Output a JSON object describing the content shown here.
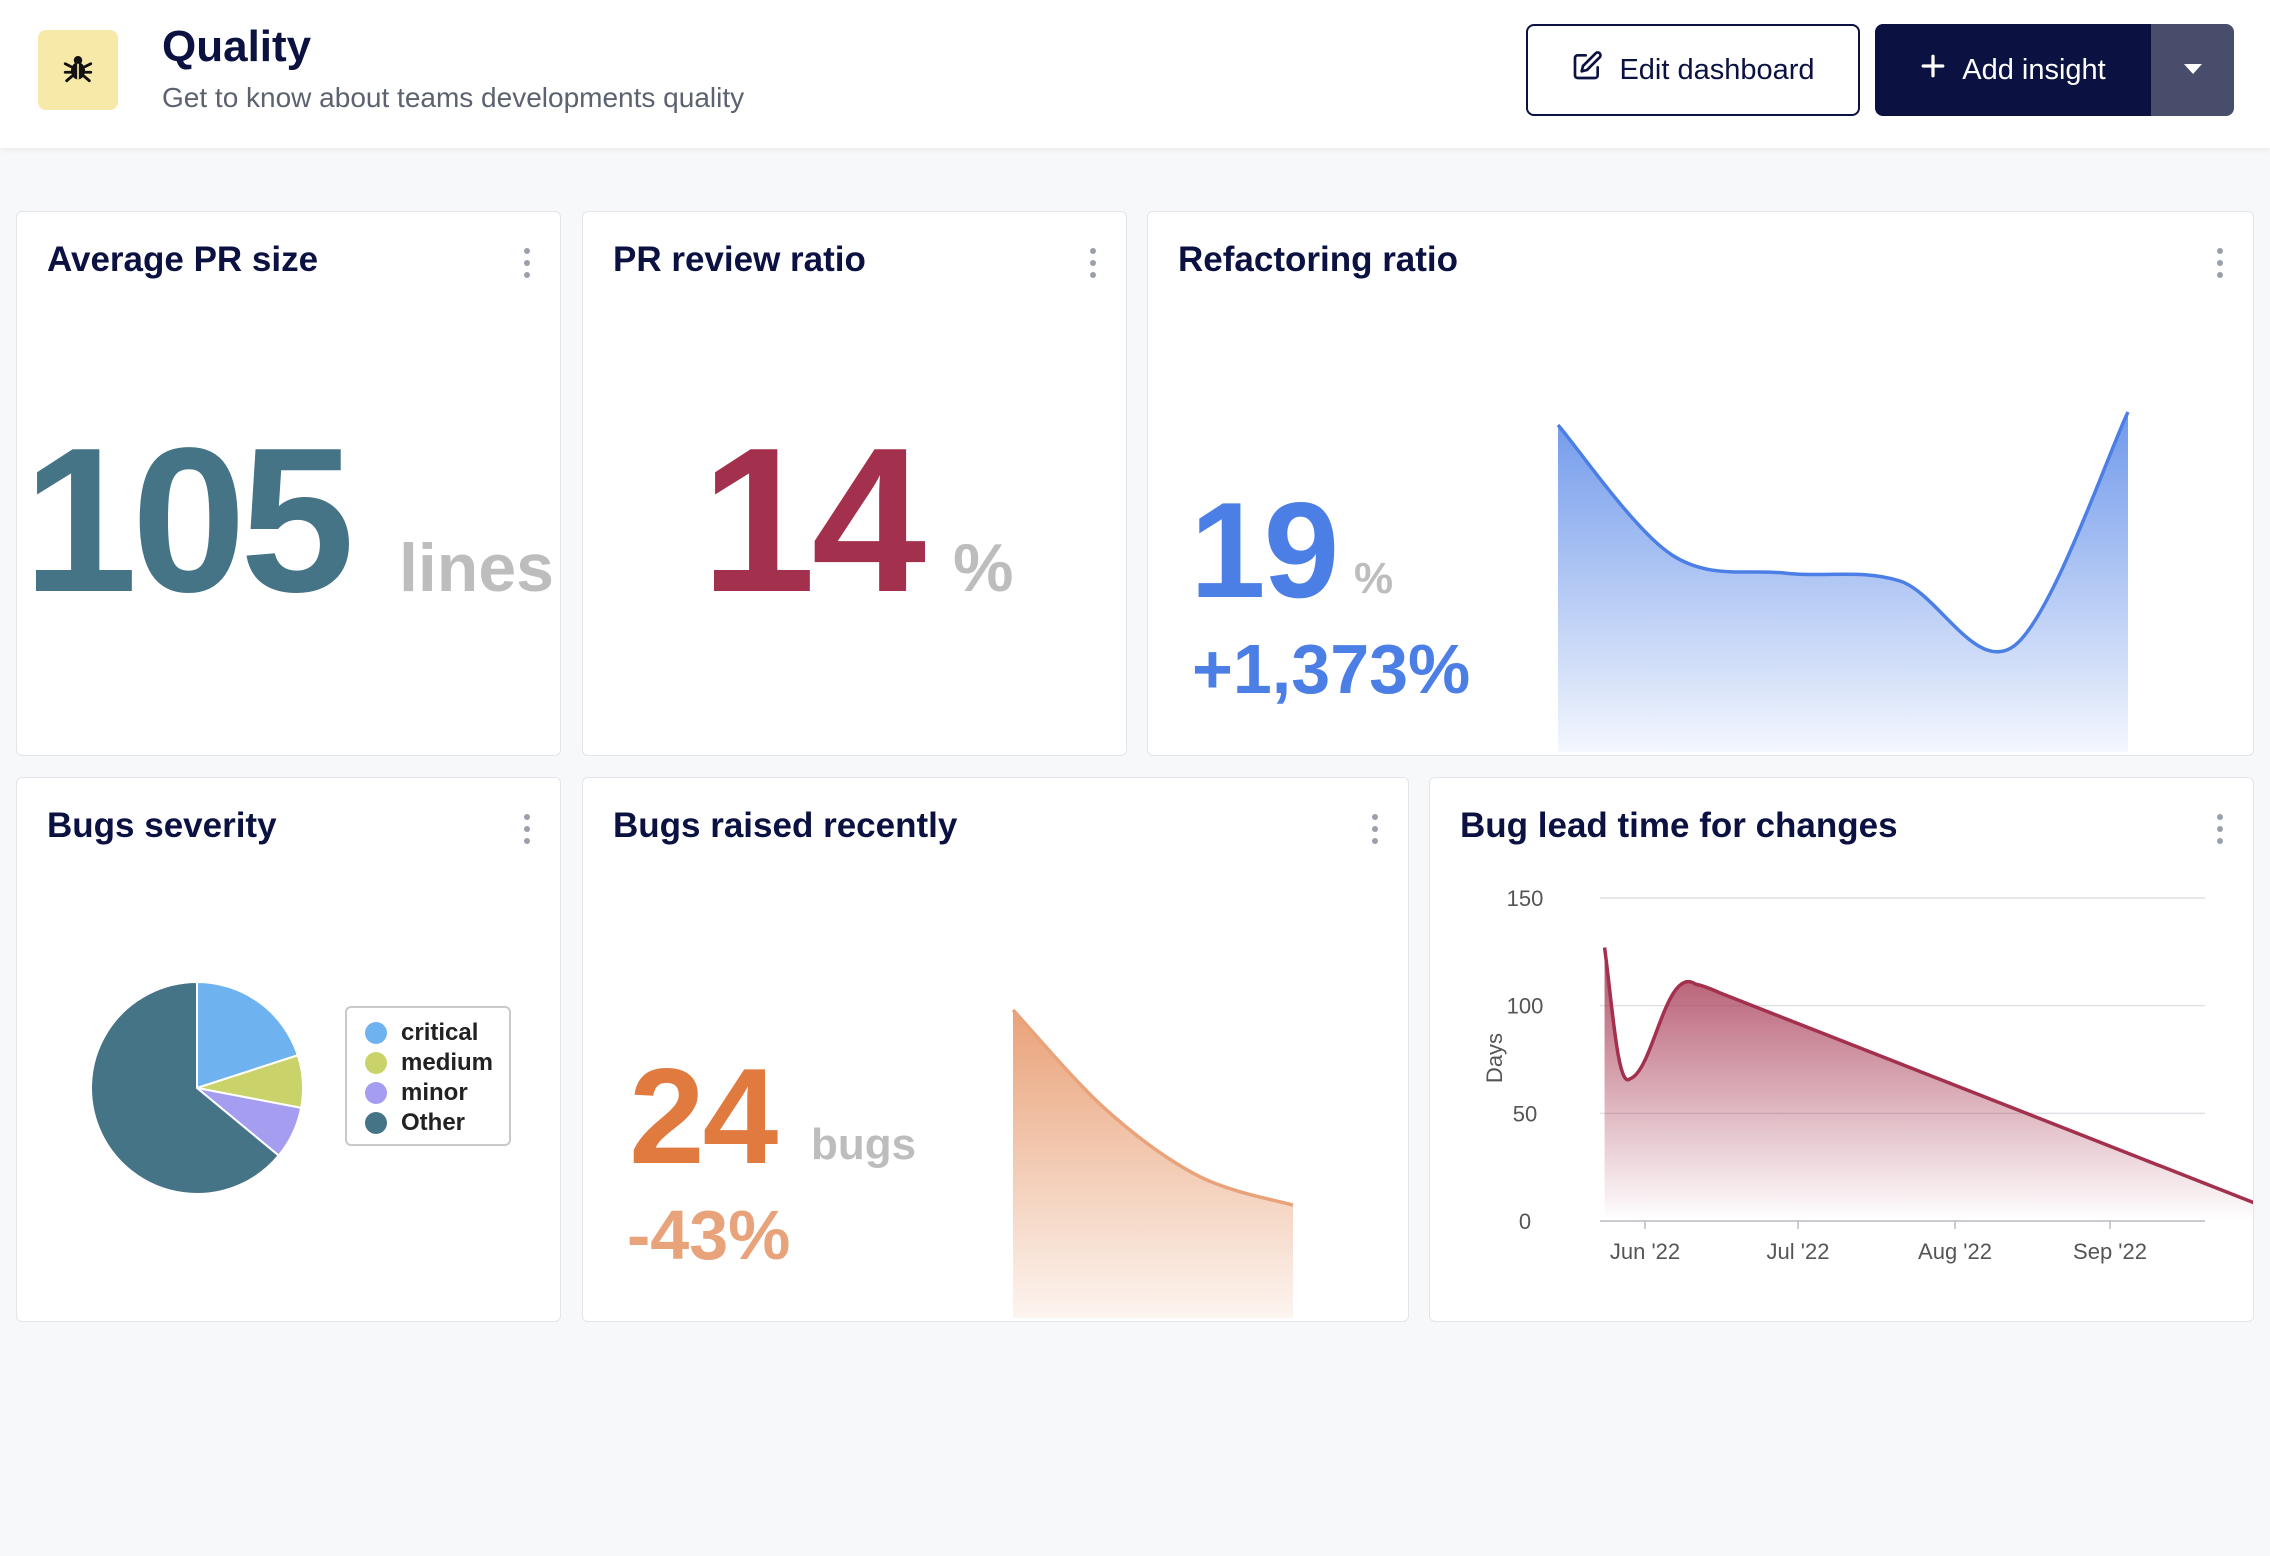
{
  "header": {
    "title": "Quality",
    "subtitle": "Get to know about teams developments quality",
    "logo_icon": "bug-icon",
    "logo_bg": "#f7e9a8",
    "edit_label": "Edit dashboard",
    "add_label": "Add insight"
  },
  "cards": {
    "avg_pr": {
      "title": "Average PR size",
      "value": "105",
      "unit": "lines",
      "color": "#457487"
    },
    "review": {
      "title": "PR review ratio",
      "value": "14",
      "unit": "%",
      "color": "#a3304c"
    },
    "refactor": {
      "title": "Refactoring ratio",
      "value": "19",
      "unit": "%",
      "change": "+1,373%",
      "color": "#4c7fe6"
    },
    "severity": {
      "title": "Bugs severity"
    },
    "bugs_recent": {
      "title": "Bugs raised recently",
      "value": "24",
      "unit": "bugs",
      "change": "-43%",
      "color": "#e07a3f"
    },
    "lead_time": {
      "title": "Bug lead time for changes"
    }
  },
  "chart_data": [
    {
      "type": "area",
      "name": "refactoring-sparkline",
      "y": [
        95,
        45,
        38,
        35,
        10,
        100
      ],
      "color": "#4c7fe6"
    },
    {
      "type": "pie",
      "name": "bugs-severity",
      "labels": [
        "critical",
        "medium",
        "minor",
        "Other"
      ],
      "values": [
        20,
        8,
        8,
        64
      ],
      "colors": [
        "#6fb2f0",
        "#c9d36a",
        "#a49df0",
        "#457487"
      ]
    },
    {
      "type": "area",
      "name": "bugs-raised-sparkline",
      "y": [
        100,
        58,
        30,
        18
      ],
      "color": "#e07a3f"
    },
    {
      "type": "area",
      "ylabel": "Days",
      "ylim": [
        0,
        150
      ],
      "yticks": [
        0,
        50,
        100,
        150
      ],
      "xticks": [
        "Jun '22",
        "Jul '22",
        "Aug '22",
        "Sep '22"
      ],
      "x": [
        "2022-05-24",
        "2022-05-29",
        "2022-06-11",
        "2022-09-30"
      ],
      "y": [
        127,
        66,
        110,
        8
      ],
      "grid": true,
      "color": "#a3304c"
    }
  ]
}
